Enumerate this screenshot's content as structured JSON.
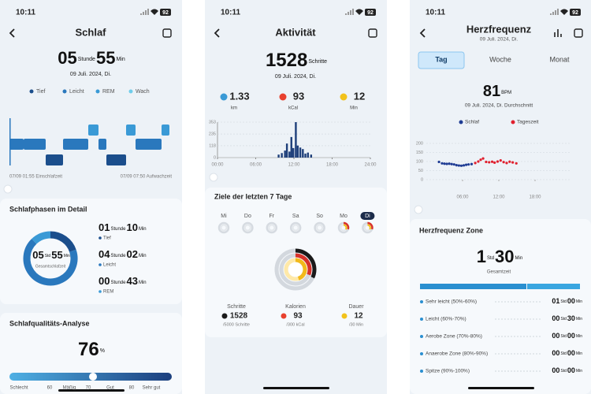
{
  "sleep": {
    "status": {
      "time": "10:11",
      "battery": "92"
    },
    "title": "Schlaf",
    "duration": {
      "hours": "05",
      "hours_unit": "Stunde",
      "minutes": "55",
      "minutes_unit": "Min"
    },
    "date": "09 Juli. 2024, Di.",
    "legend": [
      {
        "name": "Tief",
        "color": "#1b4e8c"
      },
      {
        "name": "Leicht",
        "color": "#2a78bd"
      },
      {
        "name": "REM",
        "color": "#3a9ad6"
      },
      {
        "name": "Wach",
        "color": "#6fcdeb"
      }
    ],
    "start": "07/09 01:55 Einschlafzeit",
    "end": "07/09 07:50 Aufwachzeit",
    "phases": {
      "title": "Schlafphasen im Detail",
      "center": {
        "hours": "05",
        "hours_unit": "Std",
        "minutes": "55",
        "minutes_unit": "Min",
        "label": "Gesamtschlafzeit"
      },
      "items": [
        {
          "hours": "01",
          "hours_unit": "Stunde",
          "minutes": "10",
          "minutes_unit": "Min",
          "label": "Tief"
        },
        {
          "hours": "04",
          "hours_unit": "Stunde",
          "minutes": "02",
          "minutes_unit": "Min",
          "label": "Leicht"
        },
        {
          "hours": "00",
          "hours_unit": "Stunde",
          "minutes": "43",
          "minutes_unit": "Min",
          "label": "REM"
        }
      ]
    },
    "quality": {
      "title": "Schlafqualitäts-Analyse",
      "score": 76,
      "unit": "%",
      "scale": [
        "Schlecht",
        "60",
        "Mäßig",
        "70",
        "Gut",
        "80",
        "Sehr gut"
      ]
    }
  },
  "activity": {
    "status": {
      "time": "10:11",
      "battery": "92"
    },
    "title": "Aktivität",
    "steps": "1528",
    "steps_unit": "Schritte",
    "date": "09 Juli. 2024, Di.",
    "stats": [
      {
        "value": "1.33",
        "unit": "km"
      },
      {
        "value": "93",
        "unit": "kCal"
      },
      {
        "value": "12",
        "unit": "Min"
      }
    ],
    "chart": {
      "type": "bar",
      "x": [
        9.6,
        10.1,
        10.6,
        10.9,
        11.3,
        11.6,
        11.9,
        12.3,
        12.6,
        13.0,
        13.4,
        13.8,
        14.2,
        14.7
      ],
      "values": [
        30,
        45,
        70,
        140,
        60,
        205,
        95,
        353,
        120,
        100,
        85,
        40,
        50,
        30
      ],
      "color": "#1e3f7a",
      "xlim": [
        0,
        24
      ],
      "ylim": [
        0,
        353
      ],
      "xticks": [
        {
          "value": 0,
          "label": "00:00"
        },
        {
          "value": 6,
          "label": "06:00"
        },
        {
          "value": 12,
          "label": "12:00"
        },
        {
          "value": 18,
          "label": "18:00"
        },
        {
          "value": 24,
          "label": "24:00"
        }
      ],
      "yticks": [
        0,
        118,
        235,
        353
      ]
    },
    "goals": {
      "title": "Ziele der letzten 7 Tage",
      "days": [
        "Mi",
        "Do",
        "Fr",
        "Sa",
        "So",
        "Mo",
        "Di"
      ],
      "items": [
        {
          "label": "Schritte",
          "value": "1528",
          "target": "/5000 Schritte"
        },
        {
          "label": "Kalorien",
          "value": "93",
          "target": "/300 kCal"
        },
        {
          "label": "Dauer",
          "value": "12",
          "target": "/30 Min"
        }
      ]
    }
  },
  "heart": {
    "status": {
      "time": "10:11",
      "battery": "92"
    },
    "title": "Herzfrequenz",
    "date": "09 Juli. 2024, Di.",
    "tabs": [
      "Tag",
      "Woche",
      "Monat"
    ],
    "average": "81",
    "average_unit": "BPM",
    "average_label": "09 Juli. 2024, Di. Durchschnitt",
    "chart": {
      "type": "scatter",
      "series": [
        {
          "name": "Schlaf",
          "color": "#1f3c94",
          "x": [
            2.1,
            2.6,
            3.0,
            3.4,
            3.8,
            4.2,
            4.6,
            5.0,
            5.4,
            5.8,
            6.2,
            6.6,
            7.0,
            7.5
          ],
          "values": [
            98,
            90,
            88,
            87,
            88,
            86,
            84,
            80,
            78,
            77,
            79,
            82,
            84,
            86
          ]
        },
        {
          "name": "Tageszeit",
          "color": "#e0202e",
          "x": [
            8.1,
            8.6,
            9.0,
            9.4,
            9.9,
            10.4,
            10.9,
            11.3,
            11.8,
            12.3,
            12.8,
            13.3,
            13.8,
            14.3,
            14.9
          ],
          "values": [
            92,
            100,
            110,
            117,
            98,
            96,
            99,
            94,
            100,
            106,
            97,
            92,
            99,
            95,
            90
          ]
        }
      ],
      "xlim": [
        0,
        24
      ],
      "ylim": [
        0,
        200
      ],
      "xticks": [
        {
          "value": 6,
          "label": "06:00"
        },
        {
          "value": 12,
          "label": "12:00"
        },
        {
          "value": 18,
          "label": "18:00"
        }
      ],
      "yticks": [
        0,
        50,
        100,
        150,
        200
      ]
    },
    "zone": {
      "title": "Herzfrequenz Zone",
      "hours": "1",
      "hours_unit": "Std",
      "minutes": "30",
      "minutes_unit": "Min",
      "label": "Gesamtzeit",
      "items": [
        {
          "label": "Sehr leicht (50%-60%)",
          "hours": "01",
          "hours_unit": "Std",
          "minutes": "00",
          "minutes_unit": "Min"
        },
        {
          "label": "Leicht (60%-70%)",
          "hours": "00",
          "hours_unit": "Std",
          "minutes": "30",
          "minutes_unit": "Min"
        },
        {
          "label": "Aerobe Zone (70%-80%)",
          "hours": "00",
          "hours_unit": "Std",
          "minutes": "00",
          "minutes_unit": "Min"
        },
        {
          "label": "Anaerobe Zone (80%-90%)",
          "hours": "00",
          "hours_unit": "Std",
          "minutes": "00",
          "minutes_unit": "Min"
        },
        {
          "label": "Spitze (90%-100%)",
          "hours": "00",
          "hours_unit": "Std",
          "minutes": "00",
          "minutes_unit": "Min"
        }
      ]
    }
  }
}
